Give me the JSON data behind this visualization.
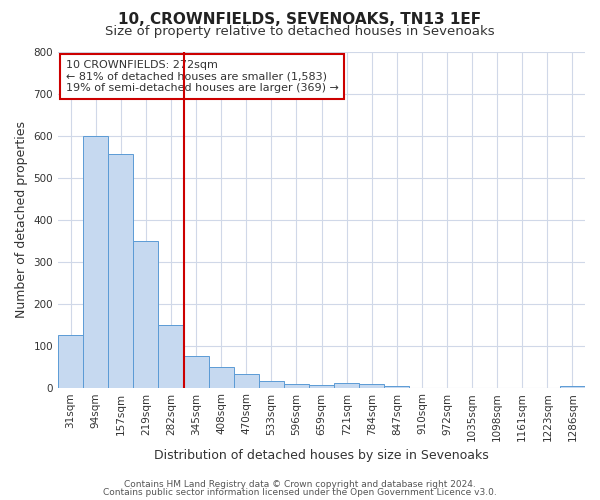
{
  "title": "10, CROWNFIELDS, SEVENOAKS, TN13 1EF",
  "subtitle": "Size of property relative to detached houses in Sevenoaks",
  "xlabel": "Distribution of detached houses by size in Sevenoaks",
  "ylabel": "Number of detached properties",
  "categories": [
    "31sqm",
    "94sqm",
    "157sqm",
    "219sqm",
    "282sqm",
    "345sqm",
    "408sqm",
    "470sqm",
    "533sqm",
    "596sqm",
    "659sqm",
    "721sqm",
    "784sqm",
    "847sqm",
    "910sqm",
    "972sqm",
    "1035sqm",
    "1098sqm",
    "1161sqm",
    "1223sqm",
    "1286sqm"
  ],
  "values": [
    125,
    600,
    555,
    350,
    150,
    75,
    50,
    32,
    15,
    8,
    5,
    12,
    8,
    3,
    0,
    0,
    0,
    0,
    0,
    0,
    3
  ],
  "bar_color": "#c6d9f0",
  "bar_edge_color": "#5b9bd5",
  "vline_x": 4.5,
  "vline_color": "#cc0000",
  "ylim": [
    0,
    800
  ],
  "yticks": [
    0,
    100,
    200,
    300,
    400,
    500,
    600,
    700,
    800
  ],
  "annotation_title": "10 CROWNFIELDS: 272sqm",
  "annotation_line1": "← 81% of detached houses are smaller (1,583)",
  "annotation_line2": "19% of semi-detached houses are larger (369) →",
  "annotation_box_color": "#ffffff",
  "annotation_box_edge": "#cc0000",
  "footer1": "Contains HM Land Registry data © Crown copyright and database right 2024.",
  "footer2": "Contains public sector information licensed under the Open Government Licence v3.0.",
  "background_color": "#ffffff",
  "grid_color": "#d0d8e8",
  "title_fontsize": 11,
  "subtitle_fontsize": 9.5,
  "axis_label_fontsize": 9,
  "tick_fontsize": 7.5,
  "annotation_fontsize": 8,
  "footer_fontsize": 6.5
}
